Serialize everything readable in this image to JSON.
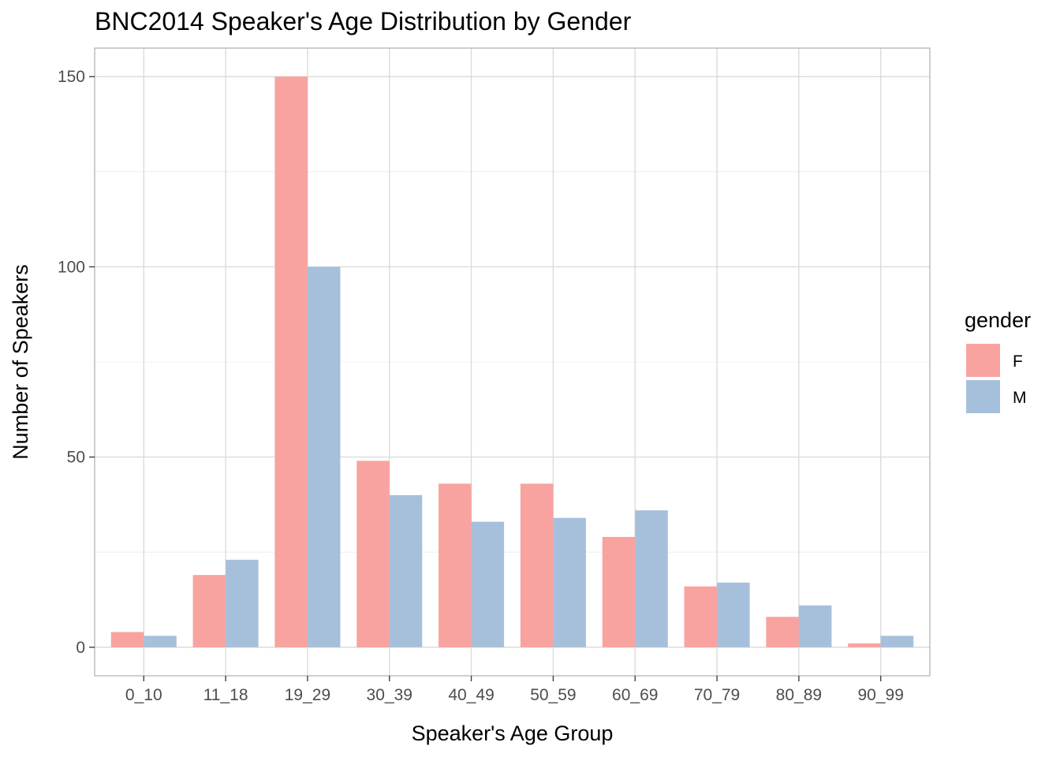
{
  "chart_data": {
    "type": "bar",
    "title": "BNC2014 Speaker's Age Distribution by Gender",
    "xlabel": "Speaker's Age Group",
    "ylabel": "Number of Speakers",
    "categories": [
      "0_10",
      "11_18",
      "19_29",
      "30_39",
      "40_49",
      "50_59",
      "60_69",
      "70_79",
      "80_89",
      "90_99"
    ],
    "series": [
      {
        "name": "F",
        "color": "#f8a39f",
        "values": [
          4,
          19,
          150,
          49,
          43,
          43,
          29,
          16,
          8,
          1
        ]
      },
      {
        "name": "M",
        "color": "#a6c0dc",
        "values": [
          3,
          23,
          100,
          40,
          33,
          34,
          36,
          17,
          11,
          3
        ]
      }
    ],
    "yticks": [
      0,
      50,
      100,
      150
    ],
    "ylim": [
      -7.5,
      157.5
    ],
    "grid": true,
    "legend": {
      "title": "gender",
      "position": "right"
    }
  }
}
